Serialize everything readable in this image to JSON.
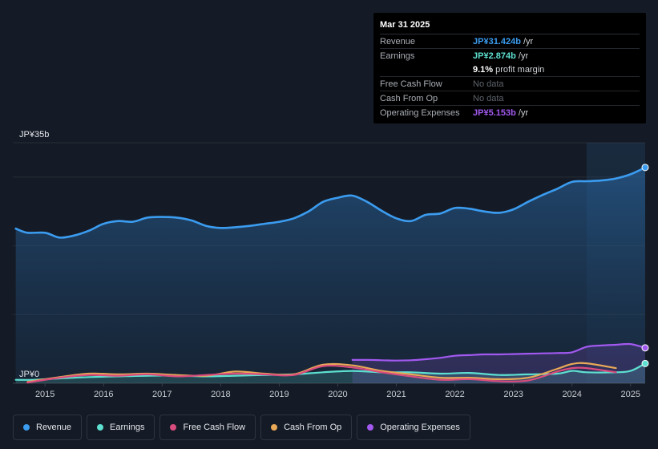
{
  "tooltip": {
    "date": "Mar 31 2025",
    "rows": [
      {
        "label": "Revenue",
        "value": "JP¥31.424b",
        "unit": "/yr",
        "color": "#3b9cf0"
      },
      {
        "label": "Earnings",
        "value": "JP¥2.874b",
        "unit": "/yr",
        "color": "#5ee0d0"
      },
      {
        "label": "",
        "value": "9.1%",
        "unit": "profit margin",
        "color": "#ffffff"
      },
      {
        "label": "Free Cash Flow",
        "value": "No data",
        "unit": "",
        "color": "#5d636b"
      },
      {
        "label": "Cash From Op",
        "value": "No data",
        "unit": "",
        "color": "#5d636b"
      },
      {
        "label": "Operating Expenses",
        "value": "JP¥5.153b",
        "unit": "/yr",
        "color": "#a259f0"
      }
    ]
  },
  "legend": [
    {
      "label": "Revenue",
      "color": "#3b9cf0"
    },
    {
      "label": "Earnings",
      "color": "#5ee0d0"
    },
    {
      "label": "Free Cash Flow",
      "color": "#d94c7e"
    },
    {
      "label": "Cash From Op",
      "color": "#e8a857"
    },
    {
      "label": "Operating Expenses",
      "color": "#a259f0"
    }
  ],
  "chart_data": {
    "type": "line",
    "title": "",
    "ylabel_top": "JP¥35b",
    "ylabel_bottom": "JP¥0",
    "ylim": [
      0,
      35
    ],
    "xlim": [
      2014.45,
      2025.25
    ],
    "x_ticks": [
      "2015",
      "2016",
      "2017",
      "2018",
      "2019",
      "2020",
      "2021",
      "2022",
      "2023",
      "2024",
      "2025"
    ],
    "forecast_shade_start": 2024.25,
    "series": [
      {
        "name": "Revenue",
        "color": "#3b9cf0",
        "area": true,
        "x": [
          2014.5,
          2014.7,
          2015.0,
          2015.25,
          2015.5,
          2015.75,
          2016.0,
          2016.25,
          2016.5,
          2016.75,
          2017.0,
          2017.25,
          2017.5,
          2017.75,
          2018.0,
          2018.25,
          2018.5,
          2018.75,
          2019.0,
          2019.25,
          2019.5,
          2019.75,
          2020.0,
          2020.25,
          2020.5,
          2020.75,
          2021.0,
          2021.25,
          2021.5,
          2021.75,
          2022.0,
          2022.25,
          2022.5,
          2022.75,
          2023.0,
          2023.25,
          2023.5,
          2023.75,
          2024.0,
          2024.25,
          2024.5,
          2024.75,
          2025.0,
          2025.25
        ],
        "values": [
          22.5,
          21.9,
          21.9,
          21.2,
          21.5,
          22.2,
          23.2,
          23.6,
          23.5,
          24.1,
          24.2,
          24.1,
          23.7,
          22.9,
          22.6,
          22.7,
          22.9,
          23.2,
          23.5,
          24.0,
          25.0,
          26.4,
          27.0,
          27.3,
          26.4,
          25.1,
          24.0,
          23.6,
          24.5,
          24.7,
          25.5,
          25.4,
          25.0,
          24.8,
          25.3,
          26.4,
          27.4,
          28.3,
          29.3,
          29.4,
          29.5,
          29.8,
          30.4,
          31.4
        ]
      },
      {
        "name": "Earnings",
        "color": "#5ee0d0",
        "area": true,
        "x": [
          2014.5,
          2014.8,
          2015.25,
          2015.75,
          2016.25,
          2016.75,
          2017.25,
          2017.75,
          2018.25,
          2018.75,
          2019.25,
          2019.75,
          2020.25,
          2020.75,
          2021.25,
          2021.75,
          2022.25,
          2022.75,
          2023.25,
          2023.75,
          2024.0,
          2024.25,
          2024.75,
          2025.0,
          2025.25
        ],
        "values": [
          0.5,
          0.5,
          0.7,
          0.9,
          1.0,
          1.1,
          1.1,
          1.0,
          1.1,
          1.2,
          1.3,
          1.6,
          1.8,
          1.6,
          1.6,
          1.4,
          1.5,
          1.2,
          1.3,
          1.4,
          1.8,
          1.6,
          1.6,
          1.8,
          2.874
        ]
      },
      {
        "name": "Free Cash Flow",
        "color": "#d94c7e",
        "area": false,
        "x": [
          2014.7,
          2015.25,
          2015.75,
          2016.25,
          2016.75,
          2017.25,
          2017.75,
          2018.25,
          2018.75,
          2019.25,
          2019.75,
          2020.25,
          2020.75,
          2021.25,
          2021.75,
          2022.25,
          2022.75,
          2023.25,
          2023.75,
          2024.0,
          2024.25,
          2024.75
        ],
        "values": [
          0.1,
          0.8,
          1.2,
          1.1,
          1.3,
          1.0,
          1.2,
          1.4,
          1.3,
          1.2,
          2.5,
          2.3,
          1.6,
          1.0,
          0.5,
          0.6,
          0.3,
          0.4,
          1.7,
          2.2,
          2.2,
          1.6
        ]
      },
      {
        "name": "Cash From Op",
        "color": "#e8a857",
        "area": false,
        "x": [
          2014.7,
          2015.25,
          2015.75,
          2016.25,
          2016.75,
          2017.25,
          2017.75,
          2018.25,
          2018.75,
          2019.25,
          2019.75,
          2020.25,
          2020.75,
          2021.25,
          2021.75,
          2022.25,
          2022.75,
          2023.25,
          2023.75,
          2024.0,
          2024.25,
          2024.75
        ],
        "values": [
          0.2,
          0.9,
          1.4,
          1.3,
          1.4,
          1.2,
          1.1,
          1.7,
          1.4,
          1.3,
          2.7,
          2.6,
          1.8,
          1.3,
          0.8,
          0.8,
          0.6,
          0.8,
          2.1,
          2.8,
          2.9,
          2.2
        ]
      },
      {
        "name": "Operating Expenses",
        "color": "#a259f0",
        "area": true,
        "x": [
          2020.25,
          2020.5,
          2020.75,
          2021.0,
          2021.25,
          2021.5,
          2021.75,
          2022.0,
          2022.25,
          2022.5,
          2022.75,
          2023.0,
          2023.25,
          2023.5,
          2023.75,
          2024.0,
          2024.25,
          2024.5,
          2024.75,
          2025.0,
          2025.25
        ],
        "values": [
          3.4,
          3.4,
          3.35,
          3.3,
          3.35,
          3.5,
          3.7,
          4.0,
          4.1,
          4.2,
          4.2,
          4.25,
          4.3,
          4.35,
          4.4,
          4.5,
          5.3,
          5.5,
          5.6,
          5.7,
          5.153
        ]
      }
    ]
  }
}
